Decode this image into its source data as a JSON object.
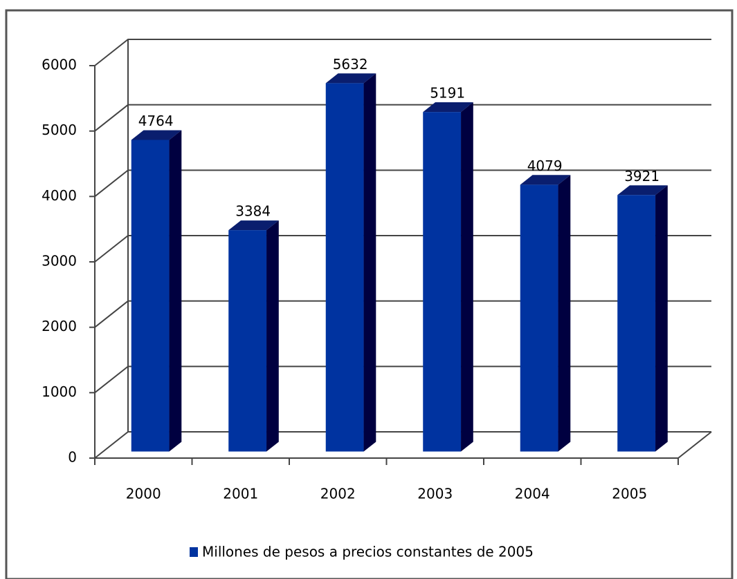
{
  "chart_data": {
    "type": "bar3d",
    "categories": [
      "2000",
      "2001",
      "2002",
      "2003",
      "2004",
      "2005"
    ],
    "series": [
      {
        "name": "Millones de pesos a precios constantes de 2005",
        "color": "#0033a0",
        "values": [
          4764,
          3384,
          5632,
          5191,
          4079,
          3921
        ]
      }
    ],
    "ylim": [
      0,
      6000
    ],
    "yticks": [
      0,
      1000,
      2000,
      3000,
      4000,
      5000,
      6000
    ],
    "grid": true,
    "legend": "bottom"
  }
}
